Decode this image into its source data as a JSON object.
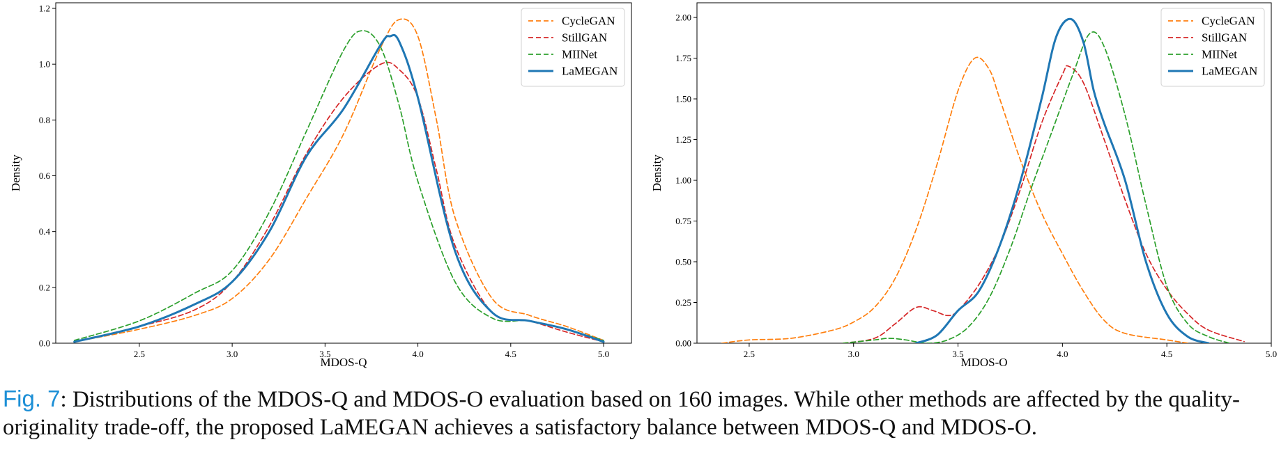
{
  "caption": {
    "label": "Fig. 7",
    "text": ": Distributions of the MDOS-Q and MDOS-O evaluation based on 160 images. While other methods are affected by the quality-originality trade-off, the proposed LaMEGAN achieves a satisfactory balance between MDOS-Q and MDOS-O."
  },
  "chart_data": [
    {
      "type": "line",
      "xlabel": "MDOS-Q",
      "ylabel": "Density",
      "xlim": [
        2.05,
        5.15
      ],
      "ylim": [
        0,
        1.22
      ],
      "xticks": [
        "2.5",
        "3.0",
        "3.5",
        "4.0",
        "4.5",
        "5.0"
      ],
      "yticks": [
        "0.0",
        "0.2",
        "0.4",
        "0.6",
        "0.8",
        "1.0",
        "1.2"
      ],
      "legend_position": "top-right",
      "series": [
        {
          "name": "CycleGAN",
          "color": "#ff7f0e",
          "style": "dashed",
          "x": [
            2.15,
            2.5,
            2.8,
            3.0,
            3.2,
            3.4,
            3.6,
            3.8,
            3.9,
            4.0,
            4.1,
            4.2,
            4.4,
            4.6,
            4.8,
            5.0
          ],
          "y": [
            0.005,
            0.05,
            0.1,
            0.16,
            0.3,
            0.52,
            0.75,
            1.06,
            1.16,
            1.1,
            0.8,
            0.45,
            0.16,
            0.1,
            0.06,
            0.01
          ]
        },
        {
          "name": "StillGAN",
          "color": "#d62728",
          "style": "dashed",
          "x": [
            2.15,
            2.5,
            2.8,
            3.0,
            3.2,
            3.4,
            3.6,
            3.8,
            3.9,
            4.0,
            4.1,
            4.2,
            4.4,
            4.6,
            4.8,
            5.0
          ],
          "y": [
            0.005,
            0.06,
            0.12,
            0.22,
            0.42,
            0.68,
            0.88,
            1.0,
            0.98,
            0.88,
            0.62,
            0.35,
            0.11,
            0.08,
            0.04,
            0.005
          ]
        },
        {
          "name": "MIINet",
          "color": "#2ca02c",
          "style": "dashed",
          "x": [
            2.15,
            2.5,
            2.8,
            3.0,
            3.2,
            3.4,
            3.6,
            3.7,
            3.8,
            3.9,
            4.0,
            4.2,
            4.4,
            4.6,
            4.8,
            5.0
          ],
          "y": [
            0.01,
            0.08,
            0.18,
            0.26,
            0.47,
            0.76,
            1.05,
            1.12,
            1.06,
            0.85,
            0.58,
            0.22,
            0.09,
            0.08,
            0.05,
            0.01
          ]
        },
        {
          "name": "LaMEGAN",
          "color": "#1f77b4",
          "style": "solid",
          "x": [
            2.15,
            2.5,
            2.8,
            3.0,
            3.2,
            3.4,
            3.6,
            3.8,
            3.85,
            3.9,
            4.0,
            4.2,
            4.4,
            4.6,
            4.8,
            5.0
          ],
          "y": [
            0.005,
            0.06,
            0.14,
            0.22,
            0.4,
            0.67,
            0.84,
            1.07,
            1.1,
            1.08,
            0.88,
            0.33,
            0.11,
            0.08,
            0.05,
            0.005
          ]
        }
      ]
    },
    {
      "type": "line",
      "xlabel": "MDOS-O",
      "ylabel": "Density",
      "xlim": [
        2.25,
        5.0
      ],
      "ylim": [
        0,
        2.09
      ],
      "xticks": [
        "2.5",
        "3.0",
        "3.5",
        "4.0",
        "4.5",
        "5.0"
      ],
      "yticks": [
        "0.00",
        "0.25",
        "0.50",
        "0.75",
        "1.00",
        "1.25",
        "1.50",
        "1.75",
        "2.00"
      ],
      "legend_position": "top-right",
      "series": [
        {
          "name": "CycleGAN",
          "color": "#ff7f0e",
          "style": "dashed",
          "x": [
            2.37,
            2.5,
            2.7,
            2.9,
            3.0,
            3.1,
            3.2,
            3.3,
            3.4,
            3.5,
            3.58,
            3.65,
            3.7,
            3.8,
            3.9,
            4.0,
            4.1,
            4.2,
            4.3,
            4.5,
            4.6
          ],
          "y": [
            0.0,
            0.02,
            0.03,
            0.08,
            0.13,
            0.22,
            0.4,
            0.7,
            1.1,
            1.55,
            1.75,
            1.68,
            1.5,
            1.12,
            0.8,
            0.55,
            0.32,
            0.14,
            0.06,
            0.02,
            0.0
          ]
        },
        {
          "name": "StillGAN",
          "color": "#d62728",
          "style": "dashed",
          "x": [
            2.95,
            3.1,
            3.2,
            3.3,
            3.38,
            3.45,
            3.5,
            3.6,
            3.7,
            3.8,
            3.9,
            4.0,
            4.03,
            4.1,
            4.2,
            4.3,
            4.4,
            4.5,
            4.6,
            4.7,
            4.87
          ],
          "y": [
            0.0,
            0.03,
            0.12,
            0.22,
            0.2,
            0.17,
            0.2,
            0.36,
            0.6,
            0.95,
            1.35,
            1.65,
            1.7,
            1.6,
            1.25,
            0.88,
            0.55,
            0.33,
            0.18,
            0.08,
            0.01
          ]
        },
        {
          "name": "MIINet",
          "color": "#2ca02c",
          "style": "dashed",
          "x": [
            2.95,
            3.1,
            3.17,
            3.25,
            3.35,
            3.45,
            3.55,
            3.65,
            3.75,
            3.85,
            3.95,
            4.05,
            4.13,
            4.2,
            4.3,
            4.4,
            4.5,
            4.6,
            4.7,
            4.8
          ],
          "y": [
            0.0,
            0.02,
            0.03,
            0.02,
            0.0,
            0.02,
            0.1,
            0.28,
            0.58,
            0.95,
            1.3,
            1.65,
            1.9,
            1.82,
            1.4,
            0.85,
            0.35,
            0.12,
            0.04,
            0.0
          ]
        },
        {
          "name": "LaMEGAN",
          "color": "#1f77b4",
          "style": "solid",
          "x": [
            3.3,
            3.4,
            3.5,
            3.6,
            3.7,
            3.8,
            3.9,
            3.97,
            4.04,
            4.1,
            4.15,
            4.2,
            4.3,
            4.4,
            4.5,
            4.6,
            4.7
          ],
          "y": [
            0.0,
            0.05,
            0.2,
            0.32,
            0.6,
            1.0,
            1.5,
            1.88,
            1.99,
            1.85,
            1.55,
            1.35,
            1.0,
            0.5,
            0.18,
            0.04,
            0.0
          ]
        }
      ]
    }
  ]
}
